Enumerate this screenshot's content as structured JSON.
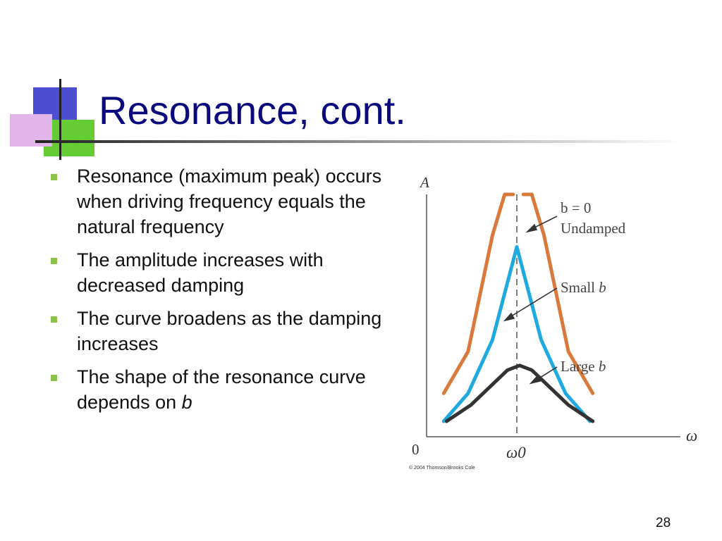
{
  "slide": {
    "title": "Resonance, cont.",
    "page_number": "28"
  },
  "bullets": [
    {
      "text": "Resonance (maximum peak) occurs when driving frequency equals the natural frequency"
    },
    {
      "text": "The amplitude increases with decreased damping"
    },
    {
      "text": "The curve broadens as the damping increases"
    },
    {
      "text": "The shape of the resonance curve depends on ",
      "italic_suffix": "b"
    }
  ],
  "colors": {
    "title": "#0a0a7e",
    "bullet_marker": "#8bc34a",
    "undamped": "#d97a3c",
    "small_b": "#1ea9e0",
    "large_b": "#333333"
  },
  "chart_data": {
    "type": "line",
    "ylabel": "A",
    "xlabel": "ω",
    "x_origin_label": "0",
    "resonance_label": "ω0",
    "copyright": "© 2004 Thomson/Brooks Cole",
    "series": [
      {
        "name": "b = 0",
        "label_line1": "b = 0",
        "label_line2": "Undamped",
        "color": "#d97a3c",
        "peak_amplitude": "unbounded",
        "x": [
          0.4,
          0.6,
          0.8,
          0.9,
          0.95,
          0.97
        ],
        "y": [
          0.12,
          0.3,
          0.8,
          1.8,
          3.6,
          6.5
        ]
      },
      {
        "name": "Small b",
        "label_line1": "Small",
        "label_line2": "b",
        "color": "#1ea9e0",
        "peak_amplitude": 0.75,
        "x": [
          0.4,
          0.6,
          0.8,
          0.9,
          1.0,
          1.1,
          1.2,
          1.4,
          1.6
        ],
        "y": [
          0.0,
          0.12,
          0.35,
          0.55,
          0.75,
          0.55,
          0.35,
          0.12,
          0.0
        ]
      },
      {
        "name": "Large b",
        "label_line1": "Large",
        "label_line2": "b",
        "color": "#333333",
        "peak_amplitude": 0.24,
        "x": [
          0.4,
          0.6,
          0.8,
          0.9,
          1.0,
          1.1,
          1.2,
          1.4,
          1.6
        ],
        "y": [
          0.0,
          0.07,
          0.17,
          0.22,
          0.24,
          0.22,
          0.17,
          0.07,
          0.0
        ]
      }
    ]
  }
}
